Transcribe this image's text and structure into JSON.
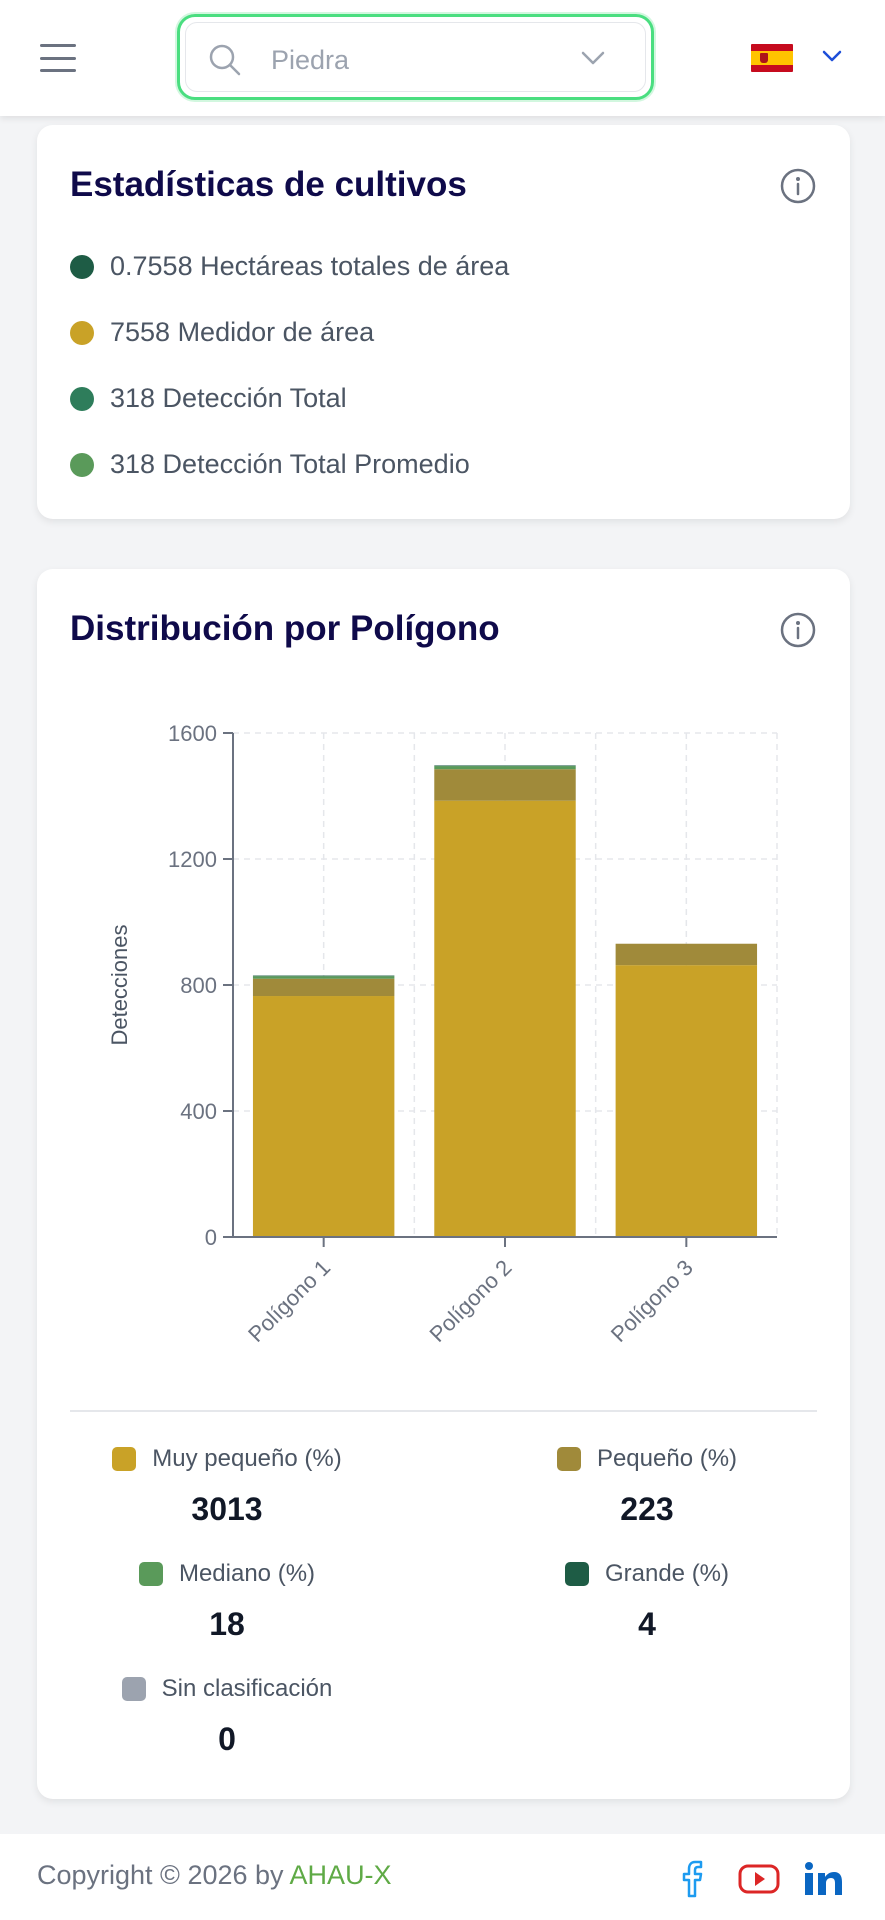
{
  "header": {
    "search_value": "Piedra",
    "language": "es"
  },
  "stats": {
    "title": "Estadísticas de cultivos",
    "items": [
      {
        "text": "0.7558 Hectáreas totales de área",
        "color": "#1e5c45"
      },
      {
        "text": "7558 Medidor de área",
        "color": "#c9a227"
      },
      {
        "text": "318 Detección Total",
        "color": "#2e7d5b"
      },
      {
        "text": "318 Detección Total Promedio",
        "color": "#5a9a5a"
      }
    ]
  },
  "distribution": {
    "title": "Distribución por Polígono",
    "legend": [
      {
        "label": "Muy pequeño (%)",
        "value": "3013",
        "color": "#c9a227"
      },
      {
        "label": "Pequeño (%)",
        "value": "223",
        "color": "#a08a3a"
      },
      {
        "label": "Mediano (%)",
        "value": "18",
        "color": "#5a9a5a"
      },
      {
        "label": "Grande (%)",
        "value": "4",
        "color": "#1e5c45"
      },
      {
        "label": "Sin clasificación",
        "value": "0",
        "color": "#9ca3af"
      }
    ]
  },
  "chart_data": {
    "type": "bar",
    "stacked": true,
    "categories": [
      "Polígono 1",
      "Polígono 2",
      "Polígono 3"
    ],
    "series": [
      {
        "name": "Muy pequeño (%)",
        "color": "#c9a227",
        "values": [
          765,
          1385,
          863
        ]
      },
      {
        "name": "Pequeño (%)",
        "color": "#a08a3a",
        "values": [
          55,
          100,
          68
        ]
      },
      {
        "name": "Mediano (%)",
        "color": "#5a9a5a",
        "values": [
          8,
          10,
          0
        ]
      },
      {
        "name": "Grande (%)",
        "color": "#1e5c45",
        "values": [
          2,
          2,
          0
        ]
      }
    ],
    "ylabel": "Detecciones",
    "ylim": [
      0,
      1600
    ],
    "yticks": [
      0,
      400,
      800,
      1200,
      1600
    ],
    "grid": true
  },
  "footer": {
    "copyright": "Copyright © 2026 by ",
    "brand": "AHAU-X",
    "social": [
      "facebook-icon",
      "youtube-icon",
      "linkedin-icon"
    ],
    "colors": {
      "facebook": "#1d9bf0",
      "youtube": "#dc2626",
      "linkedin": "#0a66c2"
    }
  }
}
